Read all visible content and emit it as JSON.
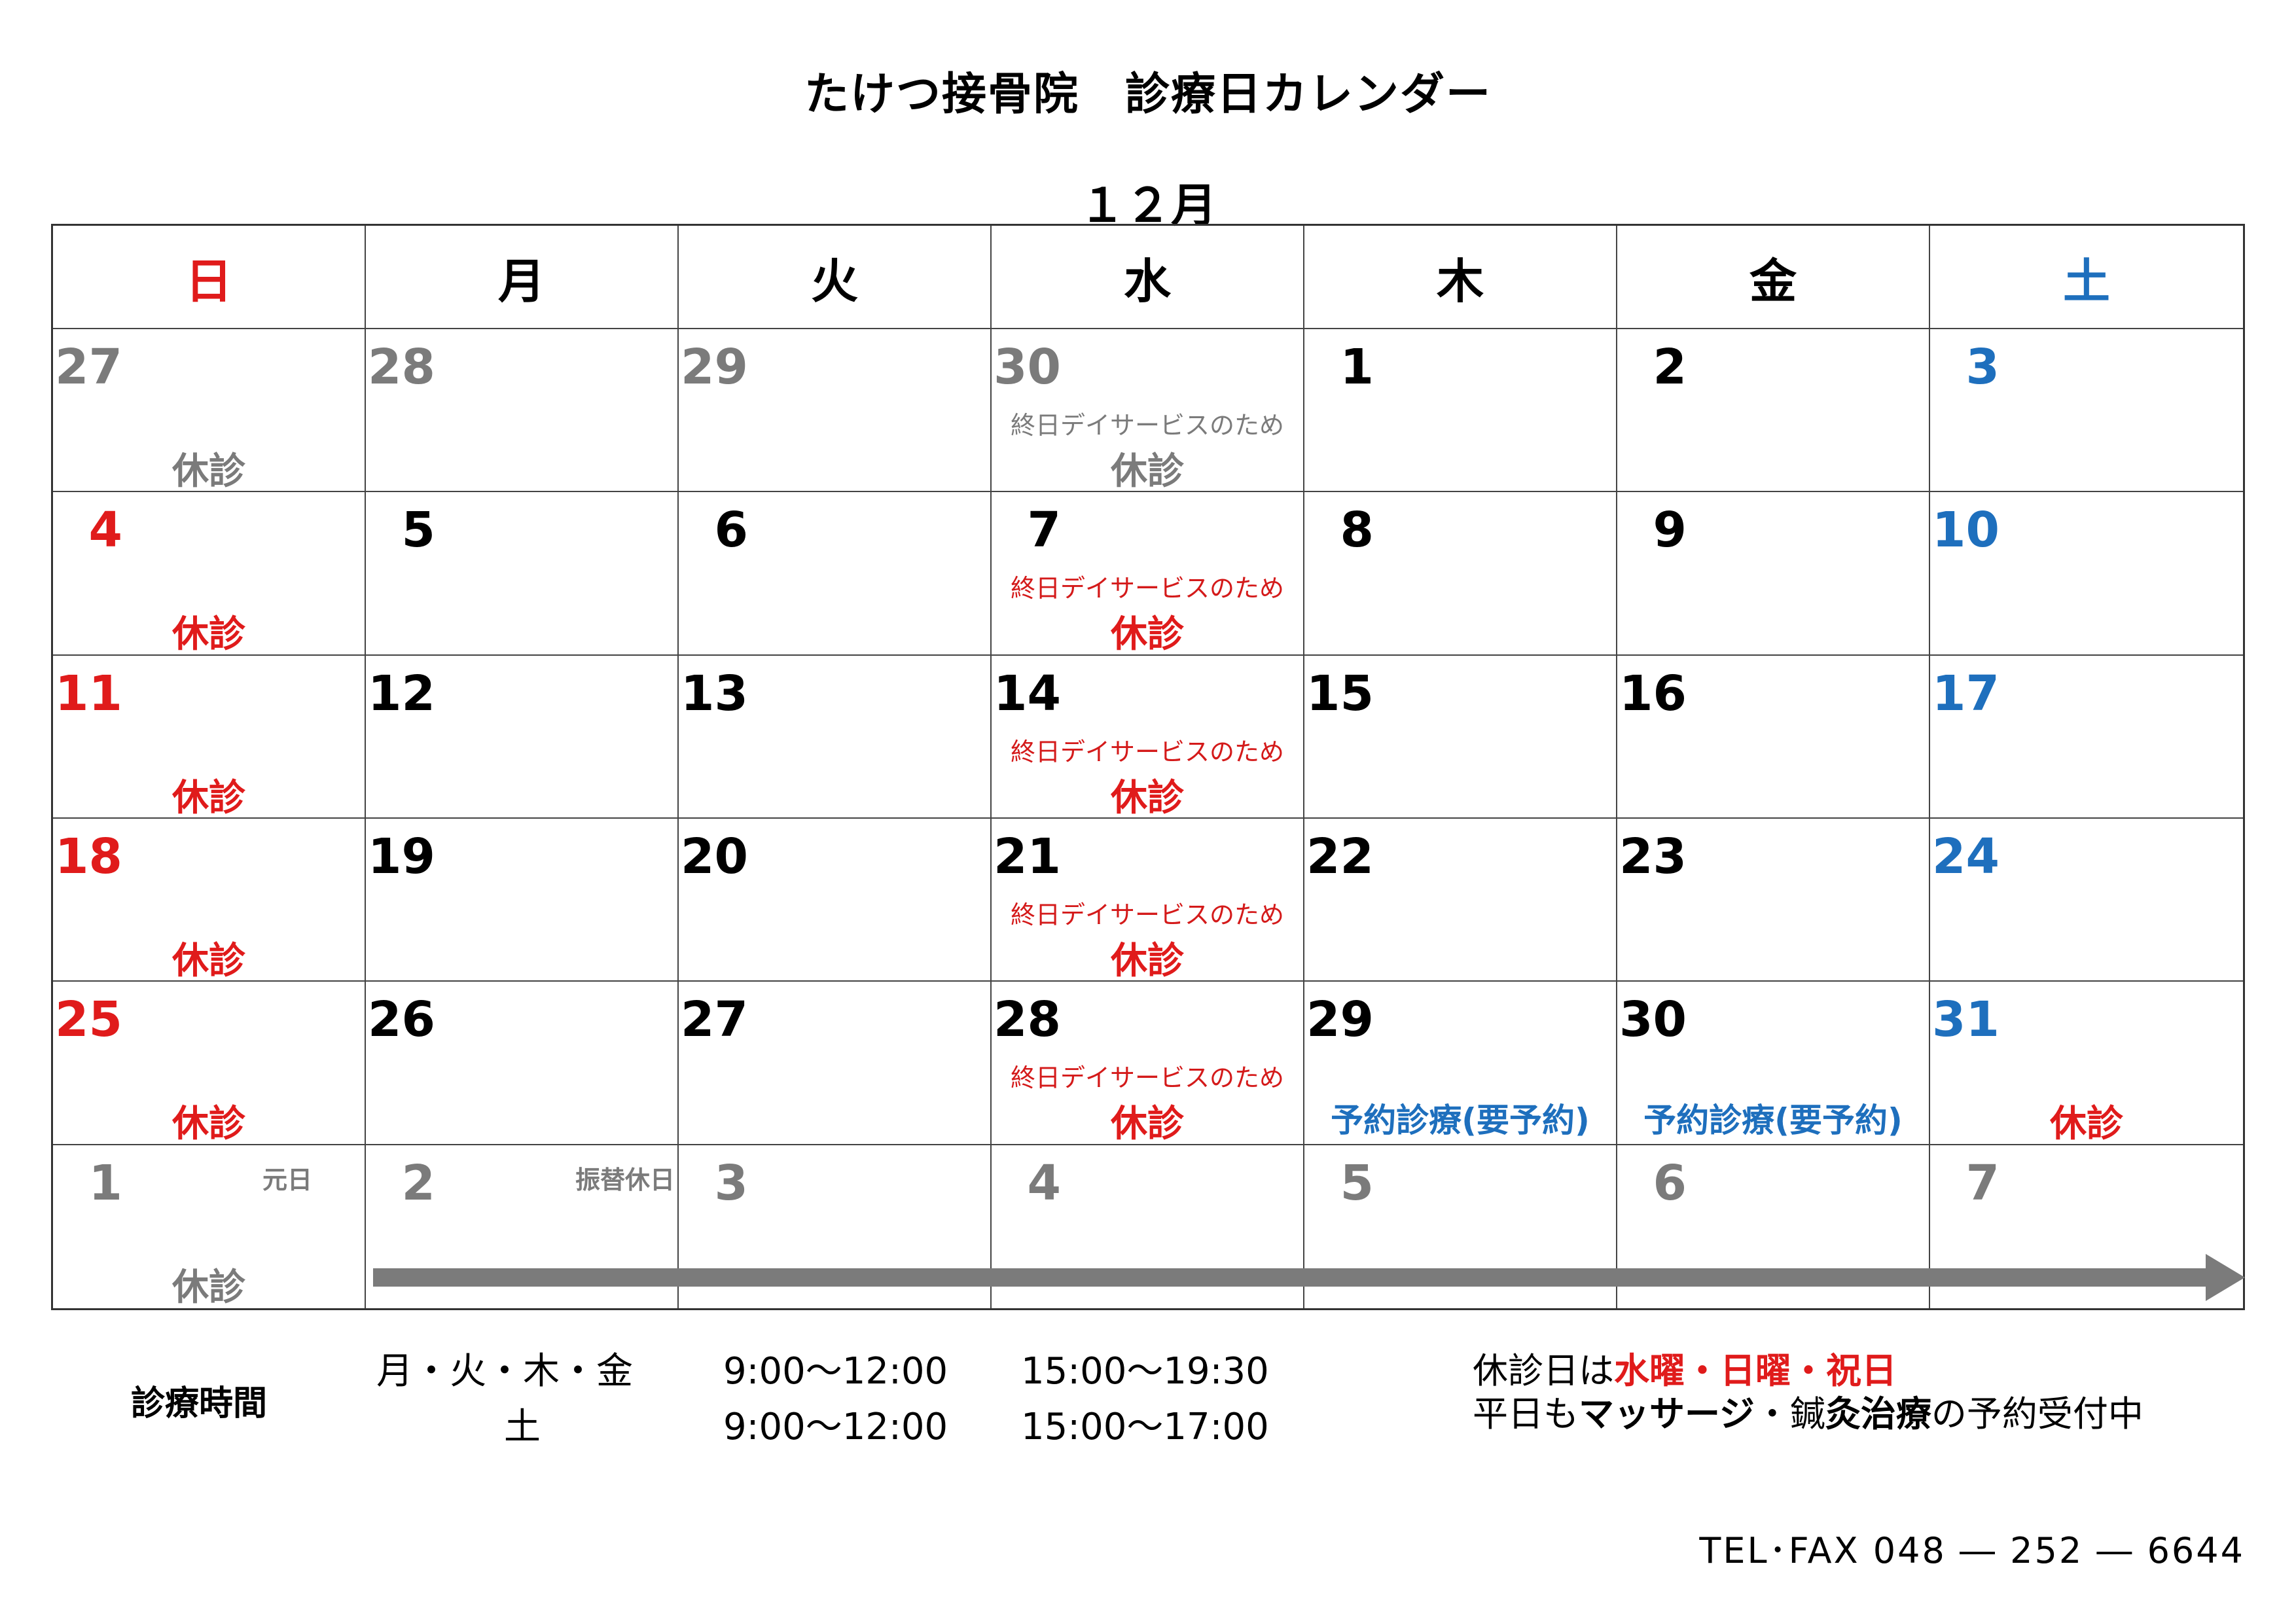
{
  "title": "たけつ接骨院　診療日カレンダー",
  "month": "１２月",
  "colors": {
    "red": "#e01b1b",
    "blue": "#1e6fbd",
    "gray": "#7b7b7b",
    "black": "#000000",
    "arrow": "#7b7b7b"
  },
  "weekdays": [
    {
      "label": "日",
      "color": "red"
    },
    {
      "label": "月",
      "color": "black"
    },
    {
      "label": "火",
      "color": "black"
    },
    {
      "label": "水",
      "color": "black"
    },
    {
      "label": "木",
      "color": "black"
    },
    {
      "label": "金",
      "color": "black"
    },
    {
      "label": "土",
      "color": "blue"
    }
  ],
  "weeks": [
    [
      {
        "day": "27",
        "color": "gray",
        "note": "休診",
        "note_color": "gray"
      },
      {
        "day": "28",
        "color": "gray"
      },
      {
        "day": "29",
        "color": "gray"
      },
      {
        "day": "30",
        "color": "gray",
        "subnote": "終日デイサービスのため",
        "subnote_color": "gray",
        "note": "休診",
        "note_color": "gray"
      },
      {
        "day": "1",
        "color": "black"
      },
      {
        "day": "2",
        "color": "black"
      },
      {
        "day": "3",
        "color": "blue"
      }
    ],
    [
      {
        "day": "4",
        "color": "red",
        "note": "休診",
        "note_color": "red"
      },
      {
        "day": "5",
        "color": "black"
      },
      {
        "day": "6",
        "color": "black"
      },
      {
        "day": "7",
        "color": "black",
        "subnote": "終日デイサービスのため",
        "subnote_color": "red",
        "note": "休診",
        "note_color": "red"
      },
      {
        "day": "8",
        "color": "black"
      },
      {
        "day": "9",
        "color": "black"
      },
      {
        "day": "10",
        "color": "blue"
      }
    ],
    [
      {
        "day": "11",
        "color": "red",
        "note": "休診",
        "note_color": "red"
      },
      {
        "day": "12",
        "color": "black"
      },
      {
        "day": "13",
        "color": "black"
      },
      {
        "day": "14",
        "color": "black",
        "subnote": "終日デイサービスのため",
        "subnote_color": "red",
        "note": "休診",
        "note_color": "red"
      },
      {
        "day": "15",
        "color": "black"
      },
      {
        "day": "16",
        "color": "black"
      },
      {
        "day": "17",
        "color": "blue"
      }
    ],
    [
      {
        "day": "18",
        "color": "red",
        "note": "休診",
        "note_color": "red"
      },
      {
        "day": "19",
        "color": "black"
      },
      {
        "day": "20",
        "color": "black"
      },
      {
        "day": "21",
        "color": "black",
        "subnote": "終日デイサービスのため",
        "subnote_color": "red",
        "note": "休診",
        "note_color": "red"
      },
      {
        "day": "22",
        "color": "black"
      },
      {
        "day": "23",
        "color": "black"
      },
      {
        "day": "24",
        "color": "blue"
      }
    ],
    [
      {
        "day": "25",
        "color": "red",
        "note": "休診",
        "note_color": "red"
      },
      {
        "day": "26",
        "color": "black"
      },
      {
        "day": "27",
        "color": "black"
      },
      {
        "day": "28",
        "color": "black",
        "subnote": "終日デイサービスのため",
        "subnote_color": "red",
        "note": "休診",
        "note_color": "red"
      },
      {
        "day": "29",
        "color": "black",
        "note": "予約診療(要予約)",
        "note_color": "blue"
      },
      {
        "day": "30",
        "color": "black",
        "note": "予約診療(要予約)",
        "note_color": "blue"
      },
      {
        "day": "31",
        "color": "blue",
        "note": "休診",
        "note_color": "red"
      }
    ],
    [
      {
        "day": "1",
        "color": "gray",
        "tag": "元日",
        "note": "休診",
        "note_color": "gray"
      },
      {
        "day": "2",
        "color": "gray",
        "tag": "振替休日"
      },
      {
        "day": "3",
        "color": "gray"
      },
      {
        "day": "4",
        "color": "gray"
      },
      {
        "day": "5",
        "color": "gray"
      },
      {
        "day": "6",
        "color": "gray"
      },
      {
        "day": "7",
        "color": "gray"
      }
    ]
  ],
  "hours": {
    "label": "診療時間",
    "rows": [
      {
        "days": "月・火・木・金",
        "am": "9:00～12:00",
        "pm": "15:00～19:30"
      },
      {
        "days": "土",
        "am": "9:00～12:00",
        "pm": "15:00～17:00"
      }
    ]
  },
  "holiday_info": {
    "line1_prefix": "休診日は",
    "line1_red": "水曜・日曜・祝日",
    "line2_a": "平日も",
    "line2_b": "マッサージ",
    "line2_c": "・鍼",
    "line2_d": "灸治療",
    "line2_e": "の予約受付中"
  },
  "contact": "TEL･FAX 048 ― 252 ― 6644"
}
